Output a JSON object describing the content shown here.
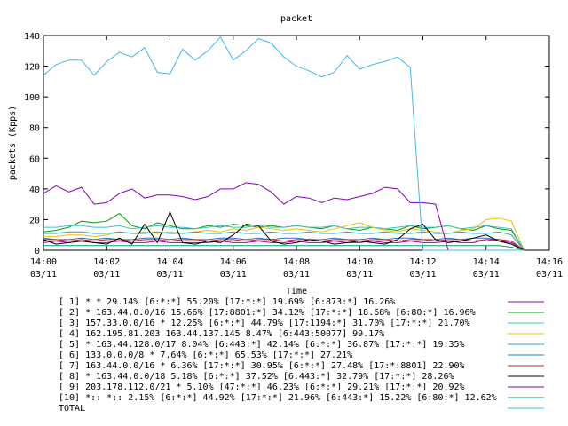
{
  "chart_data": {
    "type": "line",
    "title": "packet",
    "xlabel": "Time",
    "ylabel": "packets (Kpps)",
    "ylim": [
      0,
      140
    ],
    "yticks": [
      "0",
      "20",
      "40",
      "60",
      "80",
      "100",
      "120",
      "140"
    ],
    "xticks": [
      {
        "time": "14:00",
        "date": "03/11"
      },
      {
        "time": "14:02",
        "date": "03/11"
      },
      {
        "time": "14:04",
        "date": "03/11"
      },
      {
        "time": "14:06",
        "date": "03/11"
      },
      {
        "time": "14:08",
        "date": "03/11"
      },
      {
        "time": "14:10",
        "date": "03/11"
      },
      {
        "time": "14:12",
        "date": "03/11"
      },
      {
        "time": "14:14",
        "date": "03/11"
      },
      {
        "time": "14:16",
        "date": "03/11"
      }
    ],
    "xlim": [
      "14:00",
      "14:16"
    ],
    "grid": false,
    "legend_position": "bottom",
    "x": [
      "14:00:00",
      "14:00:24",
      "14:00:48",
      "14:01:12",
      "14:01:36",
      "14:02:00",
      "14:02:24",
      "14:02:48",
      "14:03:12",
      "14:03:36",
      "14:04:00",
      "14:04:24",
      "14:04:48",
      "14:05:12",
      "14:05:36",
      "14:06:00",
      "14:06:24",
      "14:06:48",
      "14:07:12",
      "14:07:36",
      "14:08:00",
      "14:08:24",
      "14:08:48",
      "14:09:12",
      "14:09:36",
      "14:10:00",
      "14:10:24",
      "14:10:48",
      "14:11:12",
      "14:11:36",
      "14:12:00",
      "14:12:24",
      "14:12:48",
      "14:13:12",
      "14:13:36",
      "14:14:00",
      "14:14:24",
      "14:14:48",
      "14:15:12"
    ],
    "series": [
      {
        "name": "[ 1] * * 29.14%  [6:*:*] 55.20% [17:*:*] 19.69% [6:873:*] 16.26%",
        "color": "#a000a0",
        "values": [
          5,
          6,
          5,
          6,
          5,
          5,
          6,
          5,
          5,
          6,
          5,
          5,
          5,
          5,
          6,
          5,
          5,
          6,
          5,
          5,
          6,
          5,
          5,
          6,
          5,
          5,
          6,
          5,
          5,
          6,
          5,
          5,
          6,
          5,
          5,
          7,
          6,
          5,
          0
        ]
      },
      {
        "name": "[ 2] * 163.44.0.0/16 15.66%  [17:8801:*] 34.12% [17:*:*] 18.68% [6:80:*] 16.96%",
        "color": "#00a000",
        "values": [
          12,
          13,
          15,
          19,
          18,
          19,
          24,
          16,
          14,
          18,
          16,
          14,
          14,
          16,
          15,
          17,
          16,
          15,
          16,
          15,
          16,
          15,
          14,
          16,
          14,
          13,
          15,
          14,
          13,
          16,
          14,
          15,
          16,
          14,
          13,
          16,
          14,
          13,
          0
        ]
      },
      {
        "name": "[ 3] 157.33.0.0/16 * 12.25%  [6:*:*] 44.79% [17:1194:*] 31.70% [17:*:*] 21.70%",
        "color": "#40c0c0",
        "values": [
          15,
          15,
          16,
          16,
          15,
          15,
          16,
          14,
          15,
          16,
          15,
          15,
          14,
          15,
          16,
          15,
          15,
          16,
          15,
          15,
          16,
          15,
          15,
          16,
          14,
          15,
          15,
          14,
          15,
          16,
          15,
          15,
          16,
          14,
          15,
          16,
          15,
          14,
          0
        ]
      },
      {
        "name": "[ 4] 162.195.81.203 163.44.137.145 8.47%  [6:443:50077] 99.17%",
        "color": "#e8c000",
        "values": [
          9,
          9,
          10,
          10,
          9,
          10,
          12,
          11,
          12,
          11,
          12,
          11,
          12,
          13,
          12,
          14,
          13,
          15,
          14,
          13,
          14,
          13,
          12,
          14,
          16,
          18,
          15,
          13,
          12,
          14,
          13,
          12,
          11,
          13,
          14,
          20,
          21,
          19,
          0
        ]
      },
      {
        "name": "[ 5] * 163.44.128.0/17 8.04%  [6:443:*] 42.14% [6:*:*] 36.87% [17:*:*] 19.35%",
        "color": "#20a0c0",
        "values": [
          11,
          11,
          12,
          12,
          11,
          11,
          12,
          11,
          11,
          12,
          11,
          11,
          12,
          11,
          11,
          12,
          11,
          11,
          12,
          11,
          11,
          12,
          11,
          11,
          12,
          11,
          11,
          12,
          11,
          11,
          12,
          11,
          11,
          12,
          11,
          11,
          12,
          10,
          0
        ]
      },
      {
        "name": "[ 6] 133.0.0.0/8 * 7.64%  [6:*:*] 65.53% [17:*:*] 27.21%",
        "color": "#3070c0",
        "values": [
          8,
          7,
          7,
          8,
          7,
          8,
          7,
          7,
          8,
          8,
          7,
          8,
          7,
          7,
          8,
          8,
          7,
          8,
          7,
          8,
          8,
          7,
          7,
          8,
          7,
          7,
          8,
          7,
          8,
          8,
          7,
          7,
          8,
          7,
          8,
          8,
          7,
          6,
          0
        ]
      },
      {
        "name": "[ 7] 163.44.0.0/16 * 6.36%  [17:*:*] 30.95% [6:*:*] 27.48% [17:*:8801] 22.90%",
        "color": "#d02020",
        "values": [
          7,
          7,
          6,
          7,
          6,
          7,
          7,
          6,
          7,
          7,
          6,
          7,
          7,
          6,
          7,
          7,
          6,
          7,
          7,
          6,
          7,
          7,
          6,
          7,
          7,
          6,
          7,
          7,
          6,
          7,
          7,
          6,
          7,
          7,
          6,
          7,
          7,
          6,
          0
        ]
      },
      {
        "name": "[ 8] * 163.44.0.0/18 5.18%  [6:*:*] 37.52% [6:443:*] 32.79% [17:*:*] 28.26%",
        "color": "#000000",
        "values": [
          7,
          4,
          5,
          6,
          5,
          4,
          8,
          4,
          17,
          5,
          25,
          5,
          4,
          6,
          5,
          10,
          17,
          16,
          6,
          4,
          5,
          7,
          6,
          4,
          5,
          6,
          5,
          4,
          7,
          14,
          17,
          7,
          5,
          6,
          8,
          10,
          6,
          4,
          0
        ]
      },
      {
        "name": "[ 9] 203.178.112.0/21 * 5.10%  [47:*:*] 46.23% [6:*:*] 29.21% [17:*:*] 20.92%",
        "color": "#8000c0",
        "values": [
          37,
          42,
          38,
          41,
          30,
          31,
          37,
          40,
          34,
          36,
          36,
          35,
          33,
          35,
          40,
          40,
          44,
          43,
          38,
          30,
          35,
          34,
          31,
          34,
          33,
          35,
          37,
          41,
          40,
          31,
          31,
          30,
          0,
          0,
          0,
          0,
          0,
          0,
          0
        ]
      },
      {
        "name": "[10] *:: *:: 2.15%  [6:*:*] 44.92% [17:*:*] 21.96% [6:443:*] 15.22% [6:80:*] 12.62%",
        "color": "#00a070",
        "values": [
          3,
          3,
          3,
          3,
          3,
          3,
          3,
          3,
          3,
          3,
          3,
          3,
          3,
          3,
          3,
          3,
          3,
          3,
          3,
          3,
          3,
          3,
          3,
          3,
          3,
          3,
          3,
          3,
          3,
          3,
          3,
          3,
          3,
          3,
          3,
          3,
          3,
          2,
          0
        ]
      },
      {
        "name": "TOTAL",
        "color": "#40b8e8",
        "values": [
          114,
          121,
          124,
          124,
          114,
          123,
          129,
          126,
          132,
          116,
          115,
          131,
          124,
          130,
          139,
          124,
          130,
          138,
          135,
          126,
          120,
          117,
          113,
          116,
          127,
          118,
          121,
          123,
          126,
          119,
          0,
          0,
          0,
          0,
          0,
          0,
          0,
          0,
          0
        ]
      }
    ]
  }
}
